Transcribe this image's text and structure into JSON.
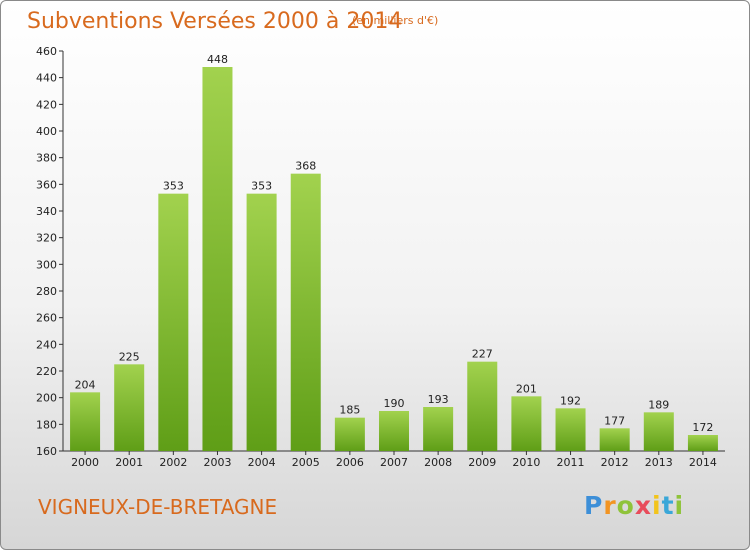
{
  "title": "Subventions Versées 2000 à 2014",
  "subtitle": "(en milliers d'€)",
  "commune": "VIGNEUX-DE-BRETAGNE",
  "logo": {
    "p": "P",
    "r": "r",
    "o": "o",
    "x": "x",
    "i": "i",
    "t": "t",
    "i2": "i"
  },
  "colors": {
    "bar_light": "#a2d24e",
    "bar_dark": "#5f9e17",
    "title": "#d86a1e"
  },
  "chart_data": {
    "type": "bar",
    "categories": [
      "2000",
      "2001",
      "2002",
      "2003",
      "2004",
      "2005",
      "2006",
      "2007",
      "2008",
      "2009",
      "2010",
      "2011",
      "2012",
      "2013",
      "2014"
    ],
    "values": [
      204,
      225,
      353,
      448,
      353,
      368,
      185,
      190,
      193,
      227,
      201,
      192,
      177,
      189,
      172
    ],
    "ylim": [
      160,
      460
    ],
    "yticks": [
      160,
      180,
      200,
      220,
      240,
      260,
      280,
      300,
      320,
      340,
      360,
      380,
      400,
      420,
      440,
      460
    ],
    "grid": false
  }
}
